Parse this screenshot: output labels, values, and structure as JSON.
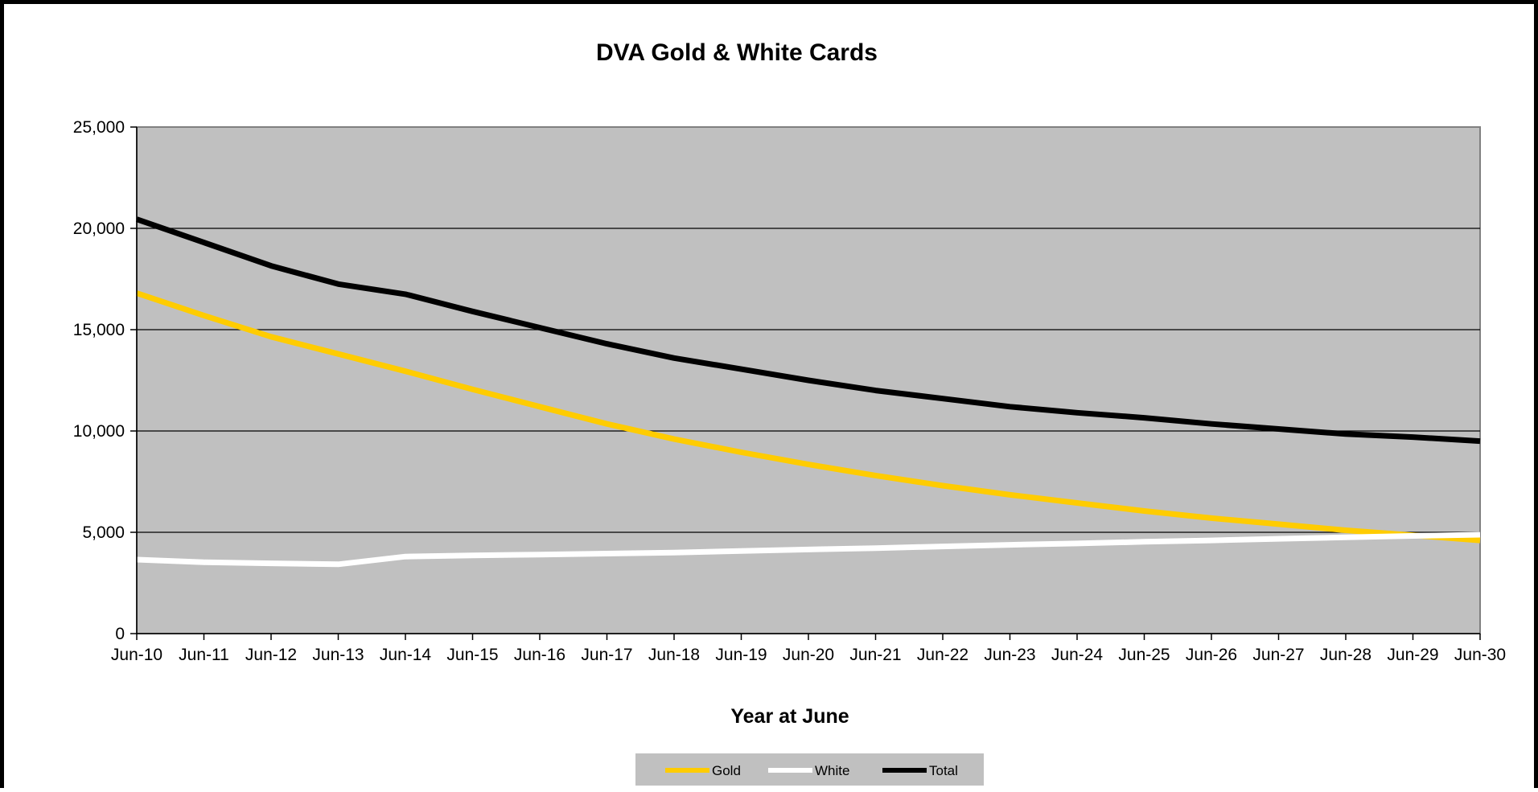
{
  "chart_data": {
    "type": "line",
    "title": "DVA Gold & White Cards",
    "xlabel": "Year at June",
    "ylabel": "",
    "ylim": [
      0,
      25000
    ],
    "yticks": [
      "0",
      "5,000",
      "10,000",
      "15,000",
      "20,000",
      "25,000"
    ],
    "ytick_values": [
      0,
      5000,
      10000,
      15000,
      20000,
      25000
    ],
    "x": [
      "Jun-10",
      "Jun-11",
      "Jun-12",
      "Jun-13",
      "Jun-14",
      "Jun-15",
      "Jun-16",
      "Jun-17",
      "Jun-18",
      "Jun-19",
      "Jun-20",
      "Jun-21",
      "Jun-22",
      "Jun-23",
      "Jun-24",
      "Jun-25",
      "Jun-26",
      "Jun-27",
      "Jun-28",
      "Jun-29",
      "Jun-30"
    ],
    "grid": true,
    "plot_background": "#c0c0c0",
    "legend_placement": "bottom-center",
    "series": [
      {
        "name": "Gold",
        "color": "#ffcc00",
        "values": [
          16800,
          15700,
          14650,
          13800,
          12950,
          12050,
          11200,
          10350,
          9600,
          8950,
          8350,
          7800,
          7300,
          6850,
          6450,
          6050,
          5700,
          5400,
          5100,
          4850,
          4600
        ]
      },
      {
        "name": "White",
        "color": "#ffffff",
        "values": [
          3650,
          3520,
          3470,
          3420,
          3800,
          3860,
          3900,
          3950,
          4000,
          4080,
          4150,
          4220,
          4300,
          4380,
          4450,
          4530,
          4600,
          4680,
          4750,
          4820,
          4880
        ]
      },
      {
        "name": "Total",
        "color": "#000000",
        "values": [
          20450,
          19300,
          18150,
          17250,
          16750,
          15900,
          15100,
          14300,
          13600,
          13050,
          12500,
          12000,
          11600,
          11200,
          10900,
          10650,
          10350,
          10100,
          9850,
          9700,
          9500
        ]
      }
    ]
  }
}
